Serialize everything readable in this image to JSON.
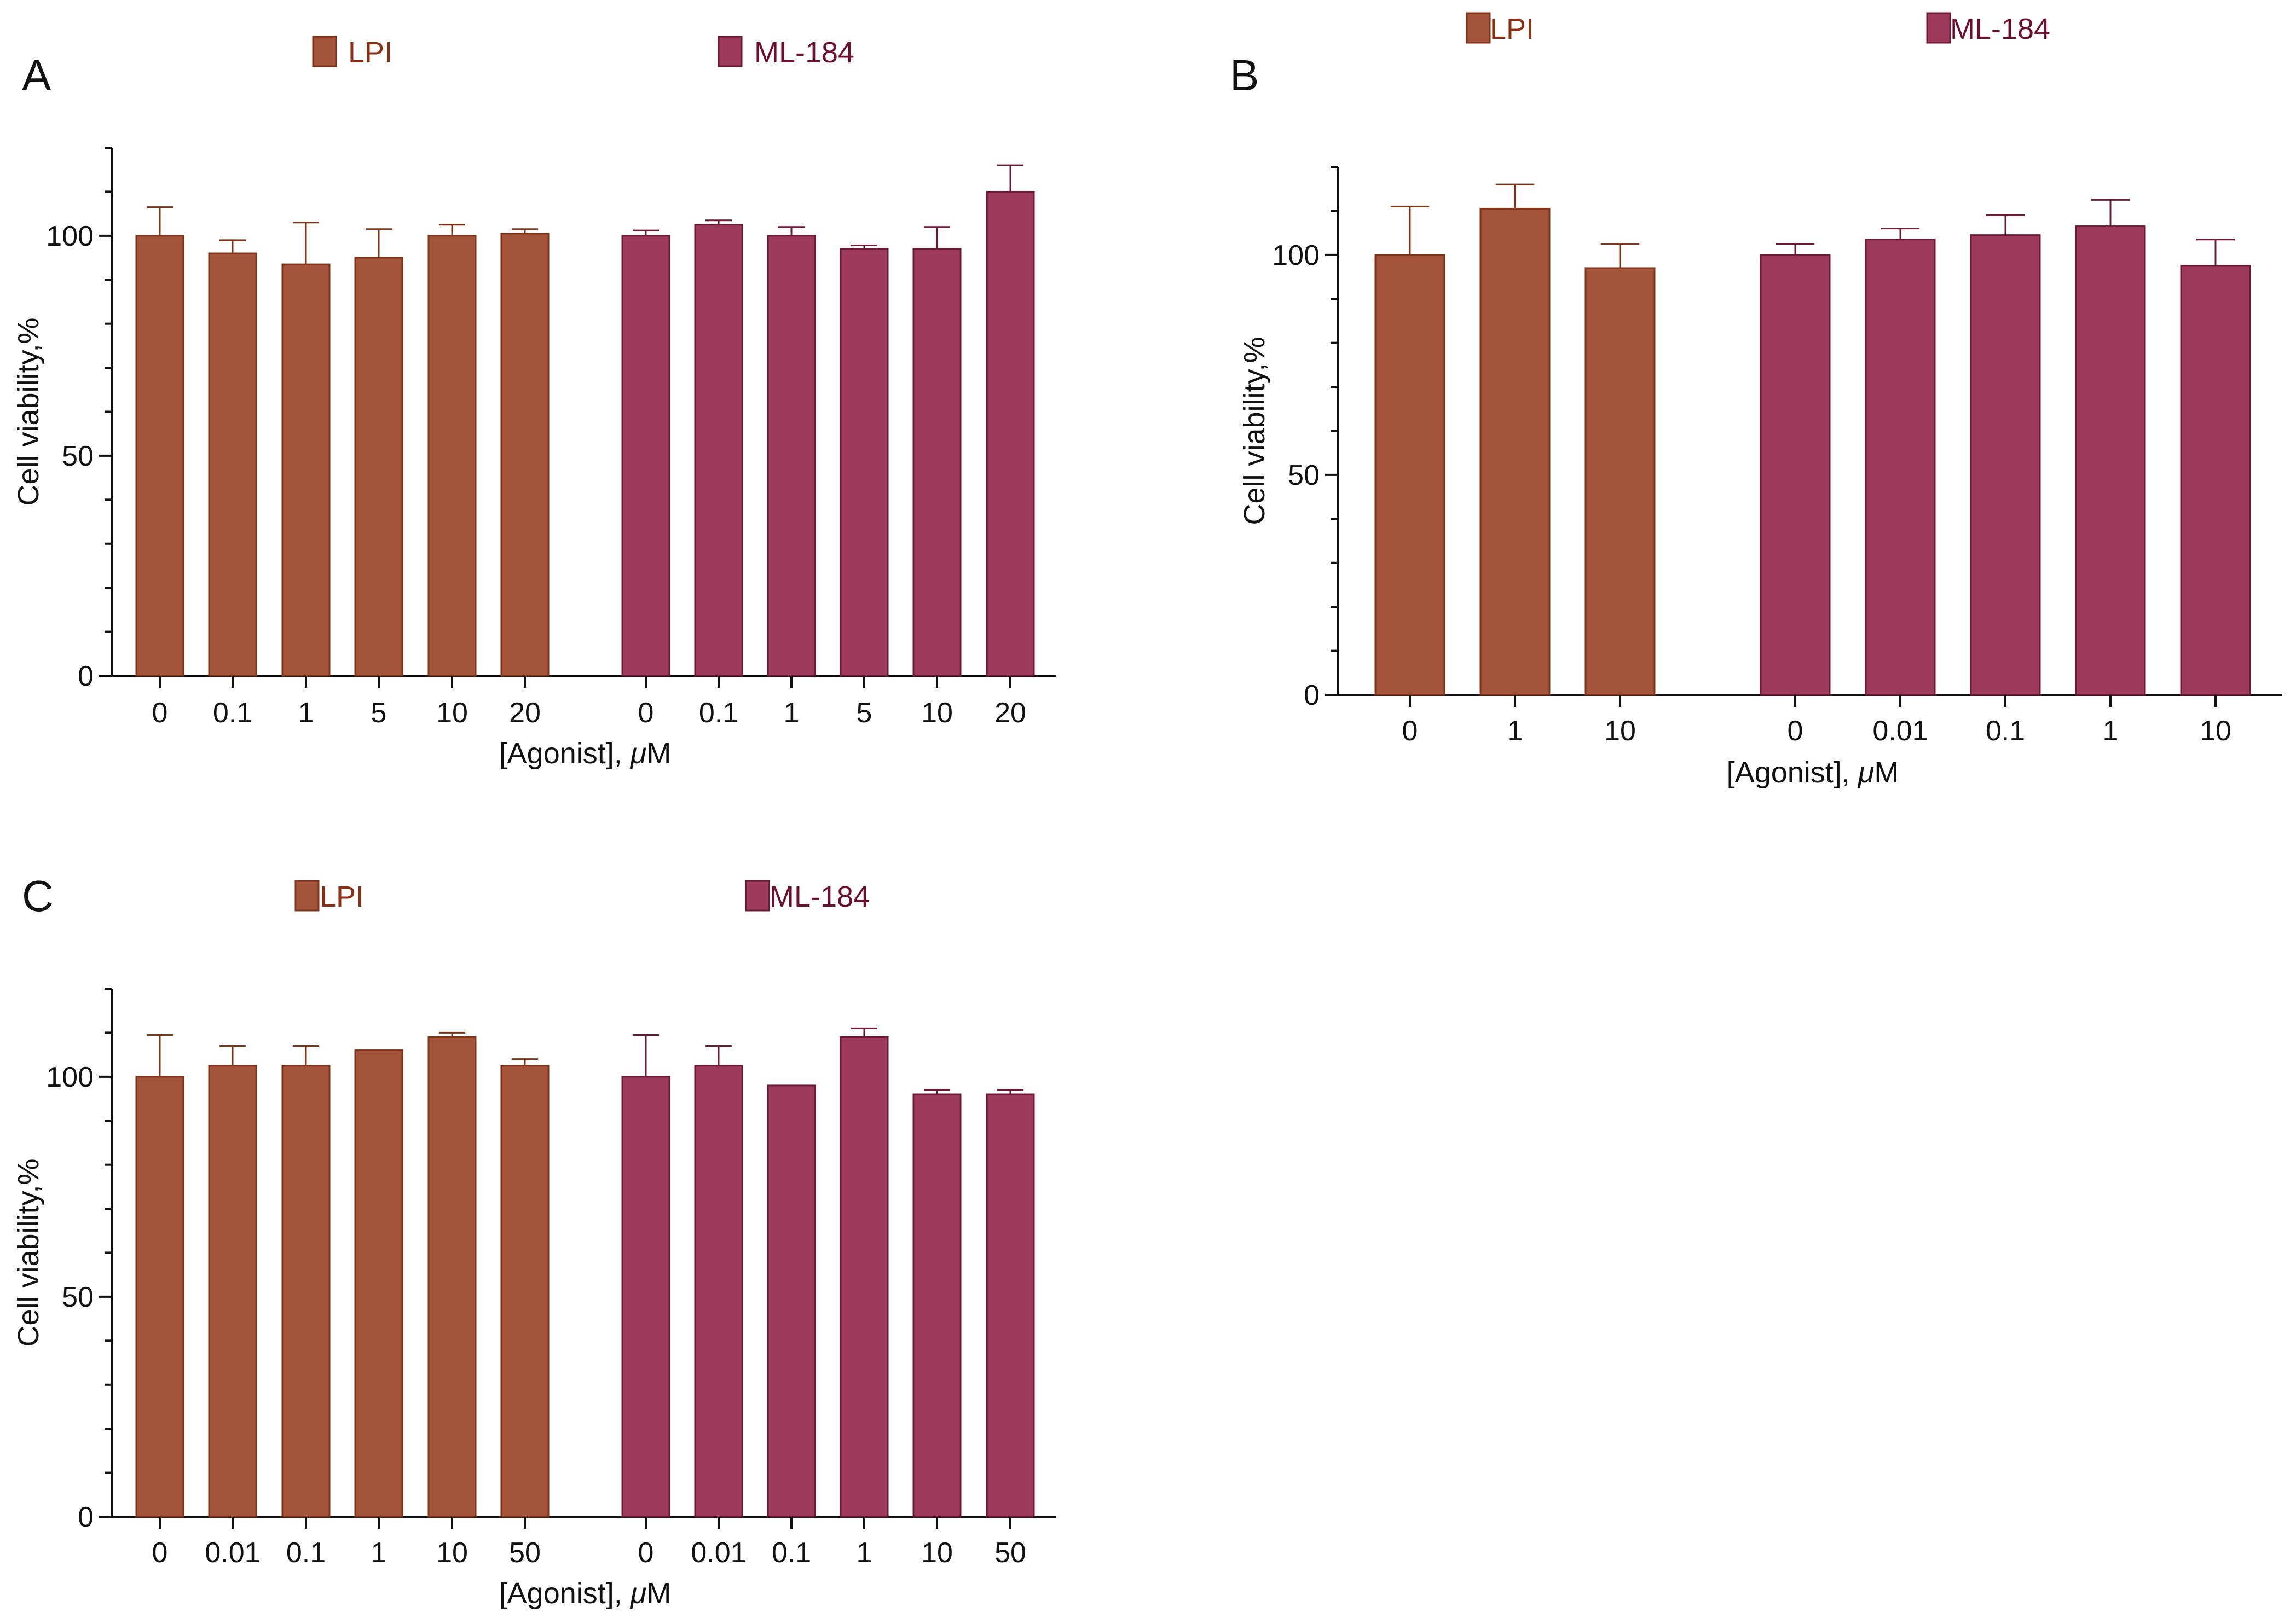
{
  "colors": {
    "lpi": "#A3543A",
    "lpi_edge": "#7E3418",
    "ml": "#9E3A5C",
    "ml_edge": "#6B1A36",
    "lpi_text": "#8B2E12",
    "ml_text": "#6B0F2C",
    "axis": "#111111"
  },
  "chart_data": [
    {
      "panel": "A",
      "type": "bar",
      "ylabel": "Cell viability,%",
      "xlabel_prefix": "[Agonist], ",
      "xlabel_unit": "μM",
      "ylim": [
        0,
        120
      ],
      "yticks": [
        0,
        50,
        100
      ],
      "series": [
        {
          "name": "LPI",
          "categories": [
            "0",
            "0.1",
            "1",
            "5",
            "10",
            "20"
          ],
          "values": [
            100,
            96,
            93.5,
            95,
            100,
            100.5
          ],
          "errors": [
            6.5,
            3,
            9.5,
            6.5,
            2.5,
            1
          ]
        },
        {
          "name": "ML-184",
          "categories": [
            "0",
            "0.1",
            "1",
            "5",
            "10",
            "20"
          ],
          "values": [
            100,
            102.5,
            100,
            97,
            97,
            110
          ],
          "errors": [
            1.2,
            1,
            2,
            0.8,
            5,
            6
          ]
        }
      ]
    },
    {
      "panel": "B",
      "type": "bar",
      "ylabel": "Cell viability,%",
      "xlabel_prefix": "[Agonist], ",
      "xlabel_unit": "μM",
      "ylim": [
        0,
        120
      ],
      "yticks": [
        0,
        50,
        100
      ],
      "series": [
        {
          "name": "LPI",
          "categories": [
            "0",
            "1",
            "10"
          ],
          "values": [
            100,
            110.5,
            97
          ],
          "errors": [
            11,
            5.5,
            5.5
          ]
        },
        {
          "name": "ML-184",
          "categories": [
            "0",
            "0.01",
            "0.1",
            "1",
            "10"
          ],
          "values": [
            100,
            103.5,
            104.5,
            106.5,
            97.5
          ],
          "errors": [
            2.5,
            2.5,
            4.5,
            6,
            6
          ]
        }
      ]
    },
    {
      "panel": "C",
      "type": "bar",
      "ylabel": "Cell viability,%",
      "xlabel_prefix": "[Agonist], ",
      "xlabel_unit": "μM",
      "ylim": [
        0,
        120
      ],
      "yticks": [
        0,
        50,
        100
      ],
      "series": [
        {
          "name": "LPI",
          "categories": [
            "0",
            "0.01",
            "0.1",
            "1",
            "10",
            "50"
          ],
          "values": [
            100,
            102.5,
            102.5,
            106,
            109,
            102.5
          ],
          "errors": [
            9.5,
            4.5,
            4.5,
            0,
            1,
            1.5
          ]
        },
        {
          "name": "ML-184",
          "categories": [
            "0",
            "0.01",
            "0.1",
            "1",
            "10",
            "50"
          ],
          "values": [
            100,
            102.5,
            98,
            109,
            96,
            96
          ],
          "errors": [
            9.5,
            4.5,
            0,
            2,
            1,
            1
          ]
        }
      ]
    }
  ]
}
